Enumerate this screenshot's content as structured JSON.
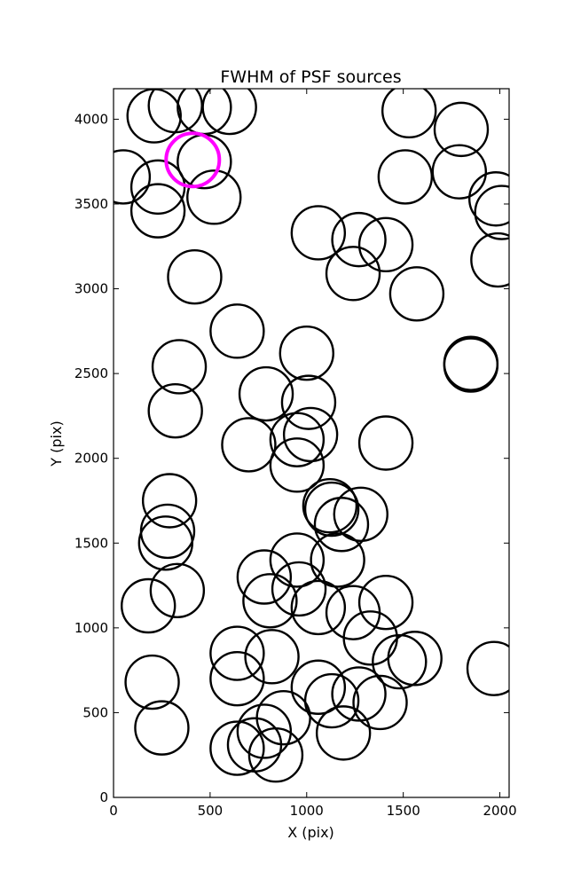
{
  "chart_data": {
    "type": "scatter",
    "title": "FWHM of PSF sources",
    "xlabel": "X (pix)",
    "ylabel": "Y (pix)",
    "xlim": [
      0,
      2048
    ],
    "ylim": [
      0,
      4180
    ],
    "xticks": [
      0,
      500,
      1000,
      1500,
      2000
    ],
    "yticks": [
      0,
      500,
      1000,
      1500,
      2000,
      2500,
      3000,
      3500,
      4000
    ],
    "grid": false,
    "legend": "none",
    "marker": "open-circle",
    "series": [
      {
        "color": "#000000",
        "points": [
          [
            210,
            4020
          ],
          [
            320,
            4080
          ],
          [
            470,
            4070
          ],
          [
            600,
            4070
          ],
          [
            1530,
            4050
          ],
          [
            1800,
            3940
          ],
          [
            1510,
            3660
          ],
          [
            1790,
            3690
          ],
          [
            50,
            3660
          ],
          [
            230,
            3600
          ],
          [
            470,
            3750
          ],
          [
            520,
            3540
          ],
          [
            230,
            3460
          ],
          [
            1980,
            3530
          ],
          [
            2010,
            3450
          ],
          [
            1990,
            3170
          ],
          [
            1060,
            3330
          ],
          [
            1270,
            3290
          ],
          [
            1410,
            3260
          ],
          [
            1240,
            3090
          ],
          [
            420,
            3070
          ],
          [
            1570,
            2970
          ],
          [
            640,
            2750
          ],
          [
            1000,
            2620
          ],
          [
            340,
            2540
          ],
          [
            1850,
            2560
          ],
          [
            1850,
            2550
          ],
          [
            790,
            2380
          ],
          [
            1010,
            2330
          ],
          [
            320,
            2280
          ],
          [
            1020,
            2140
          ],
          [
            950,
            2110
          ],
          [
            1410,
            2090
          ],
          [
            700,
            2080
          ],
          [
            950,
            1960
          ],
          [
            290,
            1750
          ],
          [
            1120,
            1720
          ],
          [
            1130,
            1700
          ],
          [
            1280,
            1670
          ],
          [
            1180,
            1610
          ],
          [
            280,
            1570
          ],
          [
            270,
            1500
          ],
          [
            950,
            1400
          ],
          [
            1160,
            1400
          ],
          [
            780,
            1300
          ],
          [
            960,
            1230
          ],
          [
            330,
            1220
          ],
          [
            810,
            1160
          ],
          [
            1060,
            1120
          ],
          [
            1410,
            1150
          ],
          [
            180,
            1130
          ],
          [
            1240,
            1090
          ],
          [
            1330,
            940
          ],
          [
            640,
            850
          ],
          [
            820,
            830
          ],
          [
            1480,
            800
          ],
          [
            1560,
            820
          ],
          [
            1970,
            760
          ],
          [
            200,
            680
          ],
          [
            640,
            700
          ],
          [
            1060,
            650
          ],
          [
            1130,
            570
          ],
          [
            1270,
            610
          ],
          [
            1380,
            560
          ],
          [
            880,
            470
          ],
          [
            250,
            410
          ],
          [
            780,
            390
          ],
          [
            1190,
            380
          ],
          [
            640,
            290
          ],
          [
            730,
            310
          ],
          [
            840,
            250
          ]
        ]
      },
      {
        "color": "#ff00ff",
        "highlight": true,
        "points": [
          [
            410,
            3760
          ]
        ]
      }
    ]
  }
}
